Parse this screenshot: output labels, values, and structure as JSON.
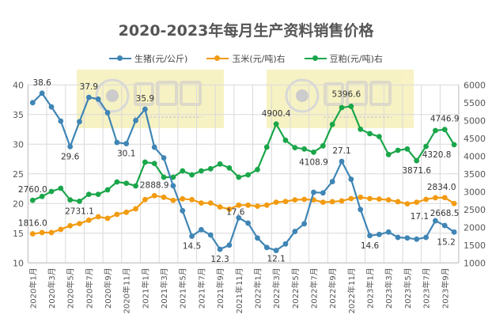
{
  "chart_data": {
    "type": "line",
    "title": "2020-2023年每月生产资料销售价格",
    "legend_position": "top",
    "grid": true,
    "categories": [
      "2020年1月",
      "2020年2月",
      "2020年3月",
      "2020年4月",
      "2020年5月",
      "2020年6月",
      "2020年7月",
      "2020年8月",
      "2020年9月",
      "2020年10月",
      "2020年11月",
      "2020年12月",
      "2021年1月",
      "2021年2月",
      "2021年3月",
      "2021年4月",
      "2021年5月",
      "2021年6月",
      "2021年7月",
      "2021年8月",
      "2021年9月",
      "2021年10月",
      "2021年11月",
      "2021年12月",
      "2022年1月",
      "2022年2月",
      "2022年3月",
      "2022年4月",
      "2022年5月",
      "2022年6月",
      "2022年7月",
      "2022年8月",
      "2022年9月",
      "2022年10月",
      "2022年11月",
      "2022年12月",
      "2023年1月",
      "2023年2月",
      "2023年3月",
      "2023年4月",
      "2023年5月",
      "2023年6月",
      "2023年7月",
      "2023年8月",
      "2023年9月",
      "2023年10月"
    ],
    "tick_labels": [
      "2020年1月",
      "2020年3月",
      "2020年5月",
      "2020年7月",
      "2020年9月",
      "2020年11月",
      "2021年1月",
      "2021年3月",
      "2021年5月",
      "2021年7月",
      "2021年9月",
      "2021年11月",
      "2022年1月",
      "2022年3月",
      "2022年5月",
      "2022年7月",
      "2022年9月",
      "2022年11月",
      "2023年1月",
      "2023年3月",
      "2023年5月",
      "2023年7月",
      "2023年9月"
    ],
    "y_left": {
      "min": 10,
      "max": 40,
      "ticks": [
        "10",
        "15",
        "20",
        "25",
        "30",
        "35",
        "40"
      ]
    },
    "y_right": {
      "min": 1000,
      "max": 6000,
      "ticks": [
        "1000",
        "1500",
        "2000",
        "2500",
        "3000",
        "3500",
        "4000",
        "4500",
        "5000",
        "5500",
        "6000"
      ]
    },
    "series": [
      {
        "name": "生猪(元/公斤)",
        "axis": "left",
        "color": "#3f85b5",
        "values": [
          37.0,
          38.6,
          36.3,
          33.9,
          29.6,
          33.8,
          37.9,
          37.6,
          35.3,
          30.3,
          30.1,
          34.0,
          35.9,
          29.5,
          27.7,
          23.0,
          18.8,
          14.5,
          15.6,
          14.7,
          12.3,
          13.0,
          17.6,
          16.7,
          14.2,
          12.6,
          12.1,
          13.2,
          15.3,
          16.6,
          21.9,
          21.8,
          23.7,
          27.1,
          24.1,
          19.0,
          14.6,
          14.8,
          15.2,
          14.3,
          14.2,
          14.0,
          14.3,
          17.1,
          16.3,
          15.2
        ],
        "labels": [
          {
            "i": 1,
            "text": "38.6"
          },
          {
            "i": 4,
            "text": "29.6"
          },
          {
            "i": 6,
            "text": "37.9"
          },
          {
            "i": 10,
            "text": "30.1"
          },
          {
            "i": 12,
            "text": "35.9"
          },
          {
            "i": 17,
            "text": "14.5"
          },
          {
            "i": 20,
            "text": "12.3"
          },
          {
            "i": 22,
            "text": "17.6"
          },
          {
            "i": 26,
            "text": "12.1"
          },
          {
            "i": 33,
            "text": "27.1"
          },
          {
            "i": 36,
            "text": "14.6"
          },
          {
            "i": 43,
            "text": "17.1"
          },
          {
            "i": 45,
            "text": "15.2"
          }
        ]
      },
      {
        "name": "玉米(元/吨)右",
        "axis": "right",
        "color": "#f29b11",
        "values": [
          1816.0,
          1852,
          1852,
          1941,
          2044,
          2104,
          2200,
          2296,
          2252,
          2363,
          2422,
          2519,
          2778,
          2888.9,
          2844,
          2756,
          2800,
          2778,
          2681,
          2681,
          2570,
          2511,
          2622,
          2622,
          2593,
          2622,
          2704,
          2726,
          2770,
          2785,
          2770,
          2704,
          2719,
          2741,
          2807,
          2844,
          2807,
          2793,
          2770,
          2719,
          2659,
          2704,
          2785,
          2830,
          2834.0,
          2668.5
        ],
        "labels": [
          {
            "i": 0,
            "text": "1816.0"
          },
          {
            "i": 13,
            "text": "2888.9"
          },
          {
            "i": 44,
            "text": "2834.0"
          },
          {
            "i": 45,
            "text": "2668.5"
          }
        ]
      },
      {
        "name": "豆粕(元/吨)右",
        "axis": "right",
        "color": "#1aa64a",
        "values": [
          2760.0,
          2867,
          3007,
          3096,
          2770,
          2731.1,
          2926,
          2926,
          3052,
          3274,
          3237,
          3163,
          3830,
          3793,
          3407,
          3407,
          3585,
          3474,
          3585,
          3644,
          3778,
          3667,
          3407,
          3474,
          3622,
          4252,
          4900.4,
          4444,
          4237,
          4200,
          4108.9,
          4289,
          4889,
          5363,
          5396.6,
          4755,
          4630,
          4548,
          4044,
          4163,
          4200,
          3871.6,
          4274,
          4718,
          4746.9,
          4320.8
        ],
        "labels": [
          {
            "i": 0,
            "text": "2760.0"
          },
          {
            "i": 5,
            "text": "2731.1"
          },
          {
            "i": 26,
            "text": "4900.4"
          },
          {
            "i": 30,
            "text": "4108.9"
          },
          {
            "i": 34,
            "text": "5396.6"
          },
          {
            "i": 41,
            "text": "3871.6"
          },
          {
            "i": 44,
            "text": "4746.9"
          },
          {
            "i": 45,
            "text": "4320.8"
          }
        ]
      }
    ]
  },
  "watermark": {
    "brand": "大畜牧",
    "url": "www.dxumu.com"
  }
}
